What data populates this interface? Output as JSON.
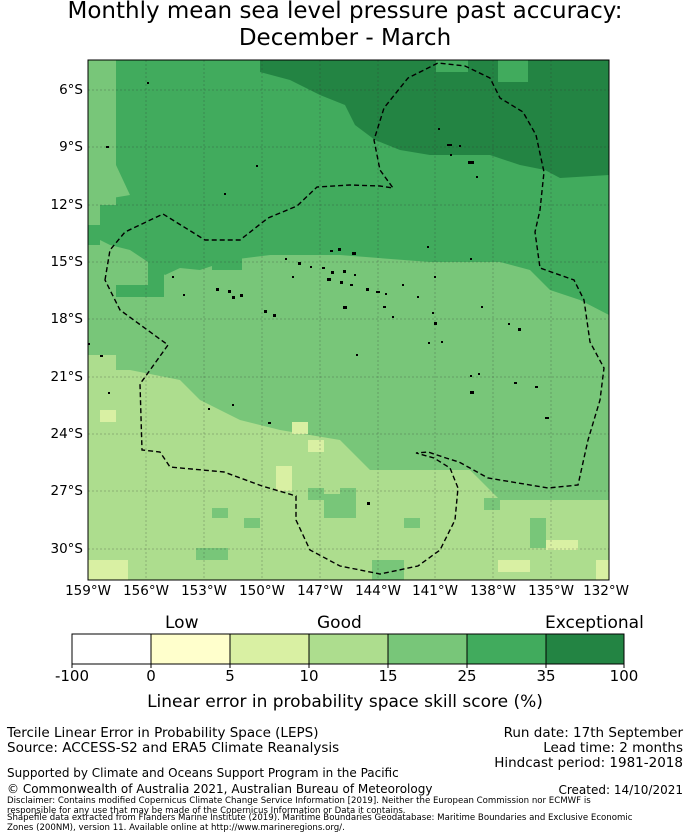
{
  "title_line1": "Monthly mean sea level pressure past accuracy:",
  "title_line2": "December - March",
  "lat_labels": [
    "6°S",
    "9°S",
    "12°S",
    "15°S",
    "18°S",
    "21°S",
    "24°S",
    "27°S",
    "30°S"
  ],
  "lon_labels": [
    "159°W",
    "156°W",
    "153°W",
    "150°W",
    "147°W",
    "144°W",
    "141°W",
    "138°W",
    "135°W",
    "132°W"
  ],
  "legend": {
    "categories": [
      "Low",
      "Good",
      "Exceptional"
    ],
    "ticks": [
      "-100",
      "0",
      "5",
      "10",
      "15",
      "25",
      "35",
      "100"
    ],
    "colors": [
      "#ffffff",
      "#ffffcc",
      "#d9f0a3",
      "#addd8e",
      "#78c679",
      "#41ab5d",
      "#238443"
    ],
    "label": "Linear error in probability space skill score (%)"
  },
  "info": {
    "line1": "Tercile Linear Error in Probability Space (LEPS)",
    "line2": "Source: ACCESS-S2 and ERA5 Climate Reanalysis",
    "run_date": "Run date: 17th September",
    "lead_time": "Lead time: 2 months",
    "hindcast": "Hindcast period: 1981-2018",
    "supported": "Supported by Climate and Oceans Support Program in the Pacific",
    "copyright": "© Commonwealth of Australia 2021, Australian Bureau of Meteorology",
    "created": "Created: 14/10/2021",
    "disclaimer1": "Disclaimer: Contains modified Copernicus Climate Change Service Information [2019]. Neither the European Commission nor ECMWF is",
    "disclaimer2": "responsible for any use that may be made of the Copernicus Information or Data it contains.",
    "disclaimer3": "Shapefile data extracted from Flanders Marine Institute (2019). Maritime Boundaries Geodatabase: Maritime Boundaries and Exclusive Economic",
    "disclaimer4": "Zones (200NM), version 11. Available online at http://www.marineregions.org/."
  }
}
